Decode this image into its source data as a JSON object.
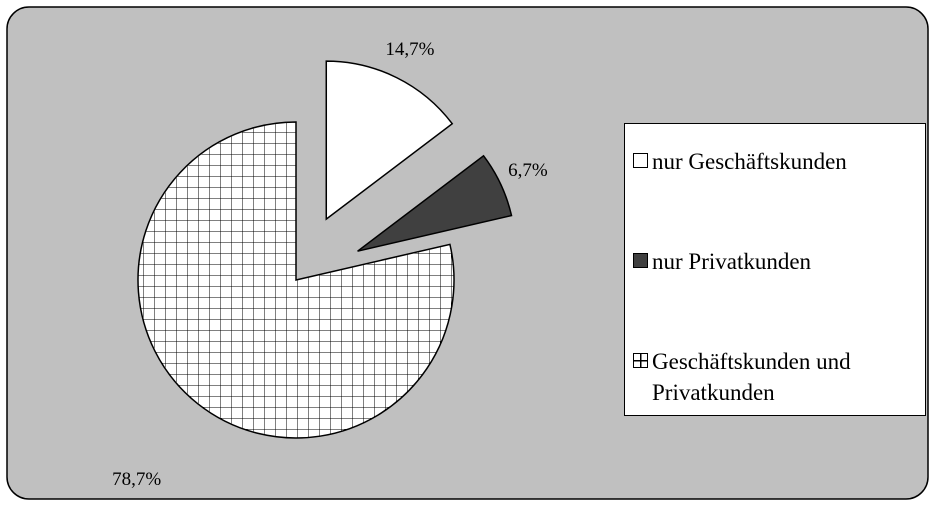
{
  "chart_data": {
    "type": "pie",
    "categories": [
      "nur Geschäftskunden",
      "nur Privatkunden",
      "Geschäftskunden und Privatkunden"
    ],
    "values": [
      14.7,
      6.7,
      78.7
    ],
    "value_labels": [
      "14,7%",
      "6,7%",
      "78,7%"
    ],
    "colors": [
      "#ffffff",
      "#404040",
      "#ffffff"
    ],
    "fills": [
      "solid",
      "solid",
      "grid"
    ],
    "explode": [
      true,
      true,
      false
    ],
    "legend": "right"
  }
}
